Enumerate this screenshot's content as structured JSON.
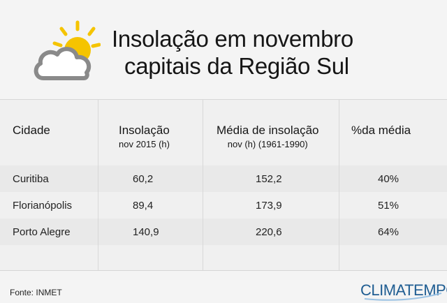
{
  "title": {
    "line1": "Insolação em novembro",
    "line2": "capitais da Região Sul"
  },
  "icon": "partly-cloudy-icon",
  "colors": {
    "sun": "#f5c400",
    "cloud": "#8a8a8a",
    "brand": "#1f5d92"
  },
  "table": {
    "headers": {
      "city": "Cidade",
      "insolation": "Insolação",
      "insolation_sub": "nov 2015 (h)",
      "average": "Média de insolação",
      "average_sub": "nov (h) (1961-1990)",
      "percent": "%da média"
    },
    "rows": [
      {
        "city": "Curitiba",
        "insolation": "60,2",
        "average": "152,2",
        "percent": "40%"
      },
      {
        "city": "Florianópolis",
        "insolation": "89,4",
        "average": "173,9",
        "percent": "51%"
      },
      {
        "city": "Porto Alegre",
        "insolation": "140,9",
        "average": "220,6",
        "percent": "64%"
      }
    ]
  },
  "footer": {
    "source": "Fonte: INMET",
    "brand": "CLIMATEMPO"
  }
}
